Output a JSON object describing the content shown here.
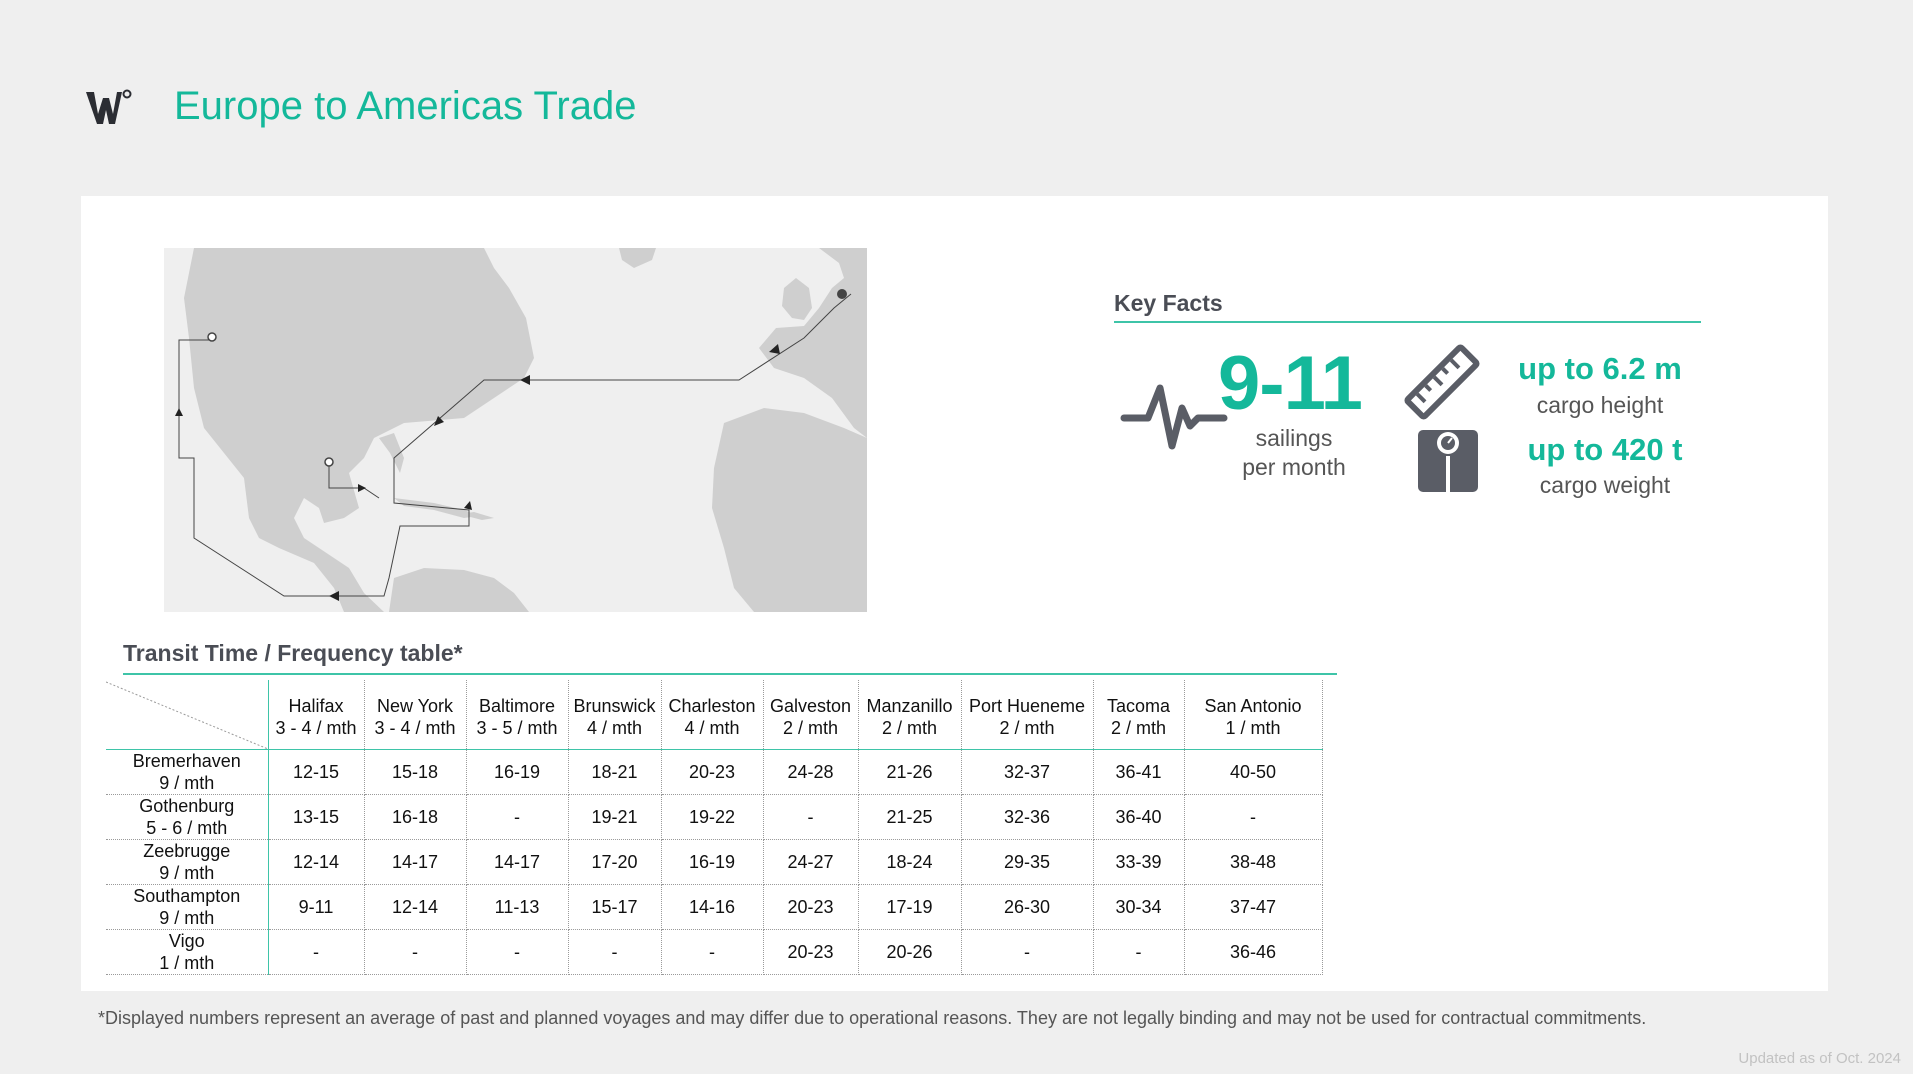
{
  "header": {
    "title": "Europe to Americas Trade",
    "logo_icon": "w-degree-logo-icon"
  },
  "colors": {
    "accent": "#14b89a",
    "rule": "#3ec4a8",
    "land": "#cfcfcf",
    "heading": "#4a4d55",
    "icon": "#5a5d66"
  },
  "map": {
    "icon": "route-map"
  },
  "key_facts": {
    "title": "Key Facts",
    "sailings_value": "9-11",
    "sailings_label": "sailings per month",
    "height_value": "up to 6.2 m",
    "height_label": "cargo height",
    "weight_value": "up to 420 t",
    "weight_label": "cargo weight",
    "icons": [
      "pulse-icon",
      "ruler-icon",
      "scale-icon"
    ]
  },
  "table": {
    "title": "Transit Time / Frequency table*",
    "columns": [
      {
        "port": "Halifax",
        "freq": "3 - 4 / mth"
      },
      {
        "port": "New York",
        "freq": "3 - 4 / mth"
      },
      {
        "port": "Baltimore",
        "freq": "3 - 5 / mth"
      },
      {
        "port": "Brunswick",
        "freq": "4 / mth"
      },
      {
        "port": "Charleston",
        "freq": "4 / mth"
      },
      {
        "port": "Galveston",
        "freq": "2 / mth"
      },
      {
        "port": "Manzanillo",
        "freq": "2 / mth"
      },
      {
        "port": "Port Hueneme",
        "freq": "2 / mth"
      },
      {
        "port": "Tacoma",
        "freq": "2 / mth"
      },
      {
        "port": "San Antonio",
        "freq": "1 / mth"
      }
    ],
    "rows": [
      {
        "port": "Bremerhaven",
        "freq": "9 / mth",
        "cells": [
          "12-15",
          "15-18",
          "16-19",
          "18-21",
          "20-23",
          "24-28",
          "21-26",
          "32-37",
          "36-41",
          "40-50"
        ]
      },
      {
        "port": "Gothenburg",
        "freq": "5 - 6 / mth",
        "cells": [
          "13-15",
          "16-18",
          "-",
          "19-21",
          "19-22",
          "-",
          "21-25",
          "32-36",
          "36-40",
          "-"
        ]
      },
      {
        "port": "Zeebrugge",
        "freq": "9 / mth",
        "cells": [
          "12-14",
          "14-17",
          "14-17",
          "17-20",
          "16-19",
          "24-27",
          "18-24",
          "29-35",
          "33-39",
          "38-48"
        ]
      },
      {
        "port": "Southampton",
        "freq": "9 / mth",
        "cells": [
          "9-11",
          "12-14",
          "11-13",
          "15-17",
          "14-16",
          "20-23",
          "17-19",
          "26-30",
          "30-34",
          "37-47"
        ]
      },
      {
        "port": "Vigo",
        "freq": "1 / mth",
        "cells": [
          "-",
          "-",
          "-",
          "-",
          "-",
          "20-23",
          "20-26",
          "-",
          "-",
          "36-46"
        ]
      }
    ]
  },
  "footnote": "*Displayed numbers represent an average of past and planned voyages and may differ due to operational reasons. They are not legally binding and may not be used for contractual commitments.",
  "updated": "Updated as of Oct. 2024"
}
